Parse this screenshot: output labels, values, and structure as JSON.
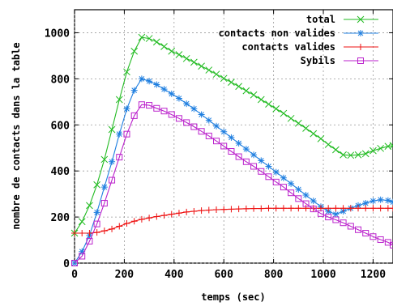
{
  "chart_data": {
    "type": "line",
    "xlabel": "temps (sec)",
    "ylabel": "nombre de contacts dans la table",
    "xlim": [
      0,
      1280
    ],
    "ylim": [
      0,
      1100
    ],
    "xticks": [
      0,
      200,
      400,
      600,
      800,
      1000,
      1200
    ],
    "yticks": [
      0,
      200,
      400,
      600,
      800,
      1000
    ],
    "xtick_labels": [
      "0",
      "200",
      "400",
      "600",
      "800",
      "1000",
      "1200"
    ],
    "ytick_labels": [
      "0",
      "200",
      "400",
      "600",
      "800",
      "1000"
    ],
    "grid": true,
    "legend_position": "top-right",
    "series": [
      {
        "name": "total",
        "color": "#22bb22",
        "marker": "x",
        "x": [
          0,
          30,
          60,
          90,
          120,
          150,
          180,
          210,
          240,
          270,
          300,
          330,
          360,
          390,
          420,
          450,
          480,
          510,
          540,
          570,
          600,
          630,
          660,
          690,
          720,
          750,
          780,
          810,
          840,
          870,
          900,
          930,
          960,
          990,
          1020,
          1050,
          1080,
          1110,
          1140,
          1170,
          1200,
          1230,
          1260,
          1280
        ],
        "y": [
          130,
          180,
          250,
          340,
          450,
          580,
          710,
          830,
          920,
          980,
          975,
          960,
          940,
          920,
          905,
          888,
          872,
          855,
          838,
          820,
          802,
          785,
          767,
          748,
          730,
          710,
          690,
          670,
          650,
          628,
          607,
          585,
          562,
          540,
          515,
          492,
          470,
          468,
          470,
          475,
          488,
          498,
          507,
          510
        ]
      },
      {
        "name": "contacts non valides",
        "color": "#1f7fe0",
        "marker": "*",
        "x": [
          0,
          30,
          60,
          90,
          120,
          150,
          180,
          210,
          240,
          270,
          300,
          330,
          360,
          390,
          420,
          450,
          480,
          510,
          540,
          570,
          600,
          630,
          660,
          690,
          720,
          750,
          780,
          810,
          840,
          870,
          900,
          930,
          960,
          990,
          1020,
          1050,
          1080,
          1110,
          1140,
          1170,
          1200,
          1230,
          1260,
          1280
        ],
        "y": [
          0,
          50,
          120,
          220,
          330,
          440,
          560,
          670,
          750,
          800,
          790,
          775,
          755,
          735,
          715,
          692,
          670,
          645,
          620,
          595,
          570,
          545,
          520,
          495,
          470,
          445,
          420,
          395,
          370,
          345,
          320,
          295,
          270,
          245,
          225,
          212,
          225,
          238,
          250,
          260,
          270,
          275,
          272,
          265
        ]
      },
      {
        "name": "contacts valides",
        "color": "#ee1111",
        "marker": "+",
        "x": [
          0,
          30,
          60,
          90,
          120,
          150,
          180,
          210,
          240,
          270,
          300,
          330,
          360,
          390,
          420,
          450,
          480,
          510,
          540,
          570,
          600,
          630,
          660,
          690,
          720,
          750,
          780,
          810,
          840,
          870,
          900,
          930,
          960,
          990,
          1020,
          1050,
          1080,
          1110,
          1140,
          1170,
          1200,
          1230,
          1260,
          1280
        ],
        "y": [
          130,
          130,
          130,
          133,
          140,
          148,
          160,
          172,
          182,
          190,
          196,
          202,
          207,
          212,
          217,
          222,
          225,
          228,
          230,
          232,
          233,
          234,
          235,
          236,
          237,
          237,
          238,
          238,
          238,
          238,
          238,
          238,
          238,
          238,
          238,
          238,
          238,
          238,
          238,
          238,
          238,
          238,
          238,
          238
        ]
      },
      {
        "name": "Sybils",
        "color": "#bb22cc",
        "marker": "square",
        "x": [
          0,
          30,
          60,
          90,
          120,
          150,
          180,
          210,
          240,
          270,
          300,
          330,
          360,
          390,
          420,
          450,
          480,
          510,
          540,
          570,
          600,
          630,
          660,
          690,
          720,
          750,
          780,
          810,
          840,
          870,
          900,
          930,
          960,
          990,
          1020,
          1050,
          1080,
          1110,
          1140,
          1170,
          1200,
          1230,
          1260,
          1280
        ],
        "y": [
          0,
          30,
          95,
          170,
          260,
          360,
          460,
          560,
          640,
          688,
          685,
          672,
          660,
          645,
          628,
          610,
          592,
          572,
          552,
          530,
          508,
          485,
          462,
          440,
          420,
          398,
          375,
          352,
          330,
          305,
          280,
          258,
          235,
          215,
          200,
          188,
          175,
          160,
          145,
          130,
          115,
          102,
          90,
          78
        ]
      }
    ]
  }
}
